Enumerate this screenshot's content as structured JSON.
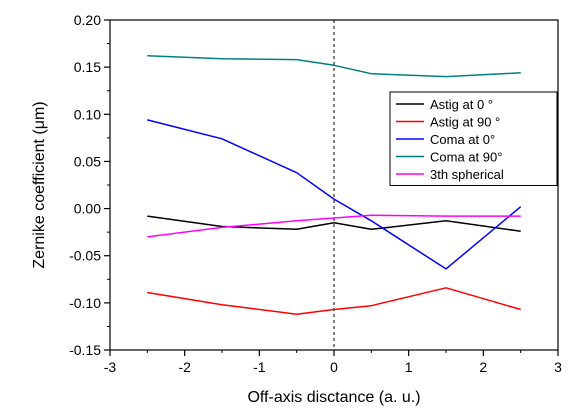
{
  "chart_data": {
    "type": "line",
    "xlabel": "Off-axis disctance (a. u.)",
    "ylabel": "Zernike coefficient (μm)",
    "xlim": [
      -3,
      3
    ],
    "ylim": [
      -0.15,
      0.2
    ],
    "xticks": [
      "-3",
      "-2",
      "-1",
      "0",
      "1",
      "2",
      "3"
    ],
    "yticks": [
      "-0.15",
      "-0.10",
      "-0.05",
      "0.00",
      "0.05",
      "0.10",
      "0.15",
      "0.20"
    ],
    "xtick_values": [
      -3,
      -2,
      -1,
      0,
      1,
      2,
      3
    ],
    "ytick_values": [
      -0.15,
      -0.1,
      -0.05,
      0.0,
      0.05,
      0.1,
      0.15,
      0.2
    ],
    "reference_line_x": 0,
    "legend_position": "top-right",
    "x": [
      -2.5,
      -1.5,
      -0.5,
      0,
      0.5,
      1.5,
      2.5
    ],
    "series": [
      {
        "name": "Astig at 0 °",
        "color": "#000000",
        "values": [
          -0.008,
          -0.019,
          -0.022,
          -0.015,
          -0.022,
          -0.013,
          -0.024
        ]
      },
      {
        "name": "Astig at 90 °",
        "color": "#ff0000",
        "values": [
          -0.089,
          -0.102,
          -0.112,
          -0.107,
          -0.103,
          -0.084,
          -0.107
        ]
      },
      {
        "name": "Coma at 0°",
        "color": "#0000ff",
        "values": [
          0.094,
          0.074,
          0.038,
          0.01,
          -0.013,
          -0.064,
          0.002
        ]
      },
      {
        "name": "Coma at 90°",
        "color": "#008080",
        "values": [
          0.162,
          0.159,
          0.158,
          0.152,
          0.143,
          0.14,
          0.144
        ]
      },
      {
        "name": "3th spherical",
        "color": "#ff00ff",
        "values": [
          -0.03,
          -0.02,
          -0.013,
          -0.01,
          -0.007,
          -0.008,
          -0.008
        ]
      }
    ]
  }
}
